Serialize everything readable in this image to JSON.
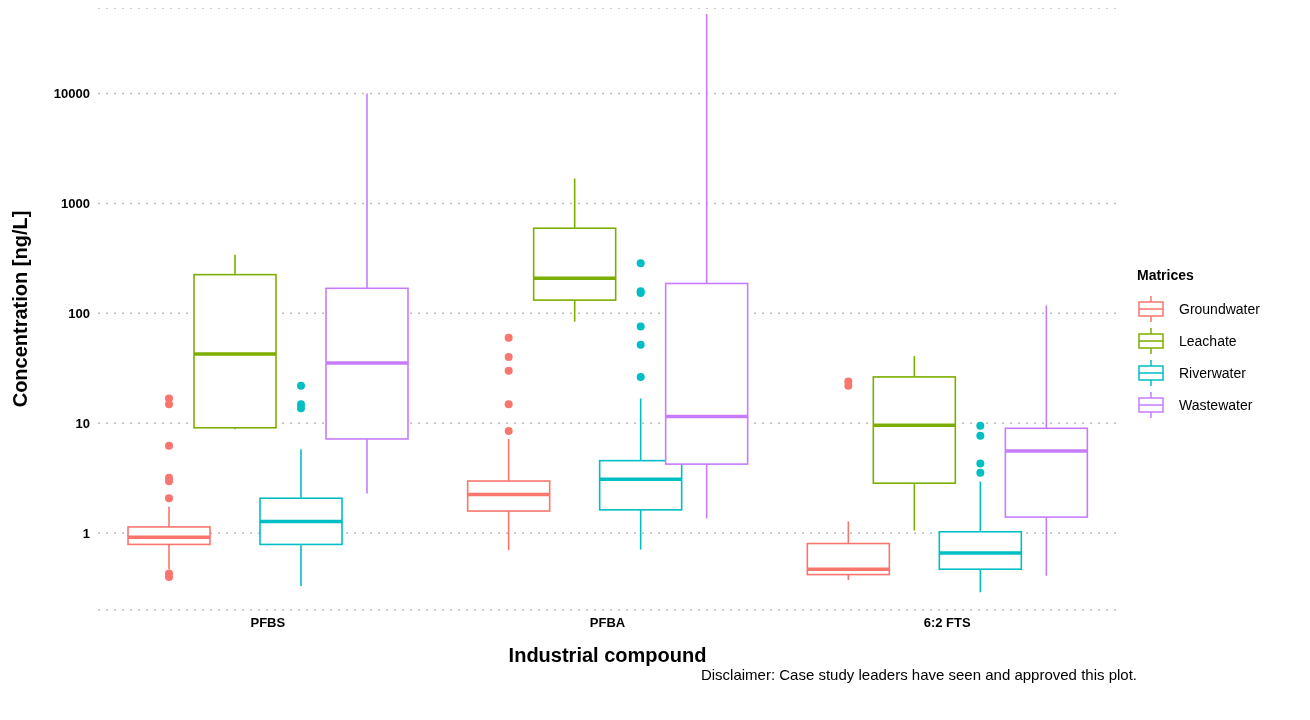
{
  "chart_data": {
    "type": "box",
    "xlabel": "Industrial compound",
    "ylabel": "Concentration [ng/L]",
    "legend_title": "Matrices",
    "annotations": [
      "Disclaimer: Case study leaders have seen and approved this plot."
    ],
    "categories": [
      "PFBS",
      "PFBA",
      "6:2 FTS"
    ],
    "log": true,
    "ylim": [
      0.2,
      60000
    ],
    "yticks": [
      1,
      10,
      100,
      1000,
      10000
    ],
    "grid": "y",
    "legend": "right",
    "series": [
      {
        "name": "Groundwater",
        "color": "#f8766d",
        "boxes": [
          {
            "low": 0.47,
            "q1": 0.79,
            "median": 0.92,
            "q3": 1.14,
            "high": 1.74,
            "outliers": [
              0.4,
              0.43,
              2.08,
              2.96,
              3.2,
              6.25,
              14.9,
              16.8
            ]
          },
          {
            "low": 0.7,
            "q1": 1.59,
            "median": 2.25,
            "q3": 2.98,
            "high": 7.2,
            "outliers": [
              8.5,
              14.9,
              30,
              40,
              60
            ]
          },
          {
            "low": 0.375,
            "q1": 0.42,
            "median": 0.47,
            "q3": 0.805,
            "high": 1.28,
            "outliers": [
              22,
              24
            ]
          }
        ]
      },
      {
        "name": "Leachate",
        "color": "#7cae00",
        "boxes": [
          {
            "low": 8.8,
            "q1": 9.1,
            "median": 42.7,
            "q3": 225,
            "high": 342
          },
          {
            "low": 84,
            "q1": 132,
            "median": 209,
            "q3": 595,
            "high": 1690
          },
          {
            "low": 1.06,
            "q1": 2.85,
            "median": 9.6,
            "q3": 26.4,
            "high": 40.8
          }
        ]
      },
      {
        "name": "Riverwater",
        "color": "#00bfc4",
        "boxes": [
          {
            "low": 0.33,
            "q1": 0.79,
            "median": 1.28,
            "q3": 2.08,
            "high": 5.8,
            "outliers": [
              13.7,
              14.9,
              22
            ]
          },
          {
            "low": 0.71,
            "q1": 1.63,
            "median": 3.1,
            "q3": 4.57,
            "high": 16.8,
            "outliers": [
              26.4,
              51.7,
              76,
              153,
              159,
              286
            ]
          },
          {
            "low": 0.29,
            "q1": 0.47,
            "median": 0.66,
            "q3": 1.03,
            "high": 2.95,
            "outliers": [
              3.55,
              4.3,
              7.7,
              9.5
            ]
          }
        ]
      },
      {
        "name": "Wastewater",
        "color": "#c77cff",
        "boxes": [
          {
            "low": 2.3,
            "q1": 7.2,
            "median": 35.4,
            "q3": 169,
            "high": 10000
          },
          {
            "low": 1.36,
            "q1": 4.25,
            "median": 11.5,
            "q3": 187,
            "high": 53000
          },
          {
            "low": 0.41,
            "q1": 1.4,
            "median": 5.6,
            "q3": 9,
            "high": 118
          }
        ]
      }
    ]
  }
}
